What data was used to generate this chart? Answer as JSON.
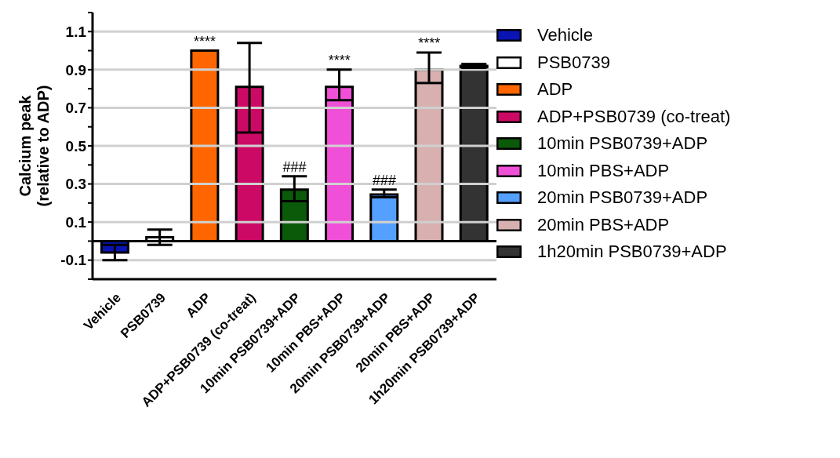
{
  "chart_data": {
    "type": "bar",
    "ylabel": "Calcium peak\n(relative to ADP)",
    "categories": [
      "Vehicle",
      "PSB0739",
      "ADP",
      "ADP+PSB0739 (co-treat)",
      "10min PSB0739+ADP",
      "10min PBS+ADP",
      "20min PSB0739+ADP",
      "20min PBS+ADP",
      "1h20min PSB0739+ADP"
    ],
    "stacked": true,
    "series": [
      {
        "name": "Vehicle",
        "color": "#0a14b4",
        "values": [
          -0.06,
          null,
          null,
          null,
          null,
          null,
          null,
          null,
          null
        ],
        "errors": [
          [
            -0.1,
            -0.02
          ],
          null,
          null,
          null,
          null,
          null,
          null,
          null,
          null
        ]
      },
      {
        "name": "PSB0739",
        "color": "#ffffff",
        "values": [
          null,
          0.02,
          null,
          null,
          null,
          null,
          null,
          null,
          null
        ],
        "errors": [
          null,
          [
            -0.02,
            0.06
          ],
          null,
          null,
          null,
          null,
          null,
          null,
          null
        ]
      },
      {
        "name": "ADP",
        "color": "#ff6600",
        "values": [
          null,
          null,
          1.0,
          null,
          null,
          null,
          null,
          null,
          null
        ]
      },
      {
        "name": "ADP+PSB0739 (co-treat)",
        "color": "#cc0a66",
        "values": [
          null,
          null,
          null,
          0.81,
          null,
          null,
          null,
          null,
          null
        ],
        "errors": [
          null,
          null,
          null,
          [
            0.57,
            1.04
          ],
          null,
          null,
          null,
          null,
          null
        ]
      },
      {
        "name": "10min PSB0739+ADP",
        "color": "#0a5a0a",
        "values": [
          null,
          null,
          null,
          null,
          0.27,
          null,
          null,
          null,
          null
        ],
        "errors": [
          null,
          null,
          null,
          null,
          [
            0.21,
            0.34
          ],
          null,
          null,
          null,
          null
        ]
      },
      {
        "name": "10min PBS+ADP",
        "color": "#f050d8",
        "values": [
          null,
          null,
          null,
          null,
          null,
          0.81,
          null,
          null,
          null
        ],
        "errors": [
          null,
          null,
          null,
          null,
          null,
          [
            0.74,
            0.9
          ],
          null,
          null,
          null
        ]
      },
      {
        "name": "20min PSB0739+ADP",
        "color": "#55a0ff",
        "values": [
          null,
          null,
          null,
          null,
          null,
          null,
          0.245,
          null,
          null
        ],
        "errors": [
          null,
          null,
          null,
          null,
          null,
          null,
          [
            0.23,
            0.27
          ],
          null,
          null
        ]
      },
      {
        "name": "20min PBS+ADP",
        "color": "#d8b0b0",
        "values": [
          null,
          null,
          null,
          null,
          null,
          null,
          null,
          0.9,
          null
        ],
        "errors": [
          null,
          null,
          null,
          null,
          null,
          null,
          null,
          [
            0.83,
            0.99
          ],
          null
        ]
      },
      {
        "name": "1h20min PSB0739+ADP",
        "color": "#333333",
        "values": [
          null,
          null,
          null,
          null,
          null,
          null,
          null,
          null,
          0.92
        ],
        "errors": [
          null,
          null,
          null,
          null,
          null,
          null,
          null,
          null,
          [
            0.91,
            0.93
          ]
        ]
      }
    ],
    "ylim": [
      -0.2,
      1.2
    ],
    "yticks": [
      {
        "value": -0.2,
        "label": null
      },
      -0.1,
      {
        "value": 0,
        "label": null
      },
      0.1,
      {
        "value": 0.2,
        "label": null
      },
      0.3,
      {
        "value": 0.4,
        "label": null
      },
      0.5,
      {
        "value": 0.6,
        "label": null
      },
      0.7,
      {
        "value": 0.8,
        "label": null
      },
      0.9,
      {
        "value": 1.0,
        "label": null
      },
      1.1,
      {
        "value": 1.2,
        "label": null
      }
    ],
    "grid": "y",
    "legend": "right",
    "ref_lines": [
      {
        "axis": "y",
        "value": 0,
        "color": "#000000"
      }
    ],
    "annotations": [
      {
        "text": "****",
        "x": "ADP",
        "y": 1.0
      },
      {
        "text": "****",
        "x": "10min PBS+ADP",
        "y": 0.81
      },
      {
        "text": "****",
        "x": "20min PBS+ADP",
        "y": 0.9
      },
      {
        "text": "###",
        "x": "10min PSB0739+ADP",
        "y": 0.27
      },
      {
        "text": "###",
        "x": "20min PSB0739+ADP",
        "y": 0.245
      }
    ]
  }
}
